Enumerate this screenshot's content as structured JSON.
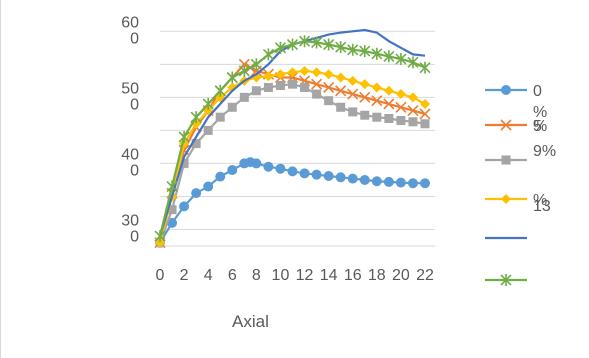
{
  "chart_data": {
    "type": "line",
    "x": [
      0,
      1,
      2,
      3,
      4,
      5,
      6,
      7,
      8,
      9,
      10,
      11,
      12,
      13,
      14,
      15,
      16,
      17,
      18,
      19,
      20,
      21,
      22
    ],
    "xticks": [
      "0",
      "2",
      "4",
      "6",
      "8",
      "10",
      "12",
      "14",
      "16",
      "18",
      "20",
      "22"
    ],
    "ytick_labels": [
      {
        "value": 60,
        "lines": [
          "60",
          "0"
        ]
      },
      {
        "value": 50,
        "lines": [
          "50",
          "0"
        ]
      },
      {
        "value": 40,
        "lines": [
          "40",
          "0"
        ]
      },
      {
        "value": 30,
        "lines": [
          "30",
          "0"
        ]
      }
    ],
    "ylim": [
      27.5,
      60.5
    ],
    "xlabel": "Axial",
    "ylabel": "",
    "legend_position": "right",
    "series": [
      {
        "name": "0 %",
        "legend_lines": [
          "0",
          "%"
        ],
        "color": "#5b9bd5",
        "marker": "circle",
        "points": [
          [
            0,
            28
          ],
          [
            1,
            31
          ],
          [
            2,
            33.5
          ],
          [
            3,
            35.5
          ],
          [
            4,
            36.5
          ],
          [
            5,
            38
          ],
          [
            6,
            39
          ],
          [
            7,
            40
          ],
          [
            7.5,
            40.2
          ],
          [
            8,
            40
          ],
          [
            9,
            39.5
          ],
          [
            10,
            39.2
          ],
          [
            11,
            38.8
          ],
          [
            12,
            38.5
          ],
          [
            13,
            38.3
          ],
          [
            14,
            38.1
          ],
          [
            15,
            37.9
          ],
          [
            16,
            37.7
          ],
          [
            17,
            37.5
          ],
          [
            18,
            37.3
          ],
          [
            19,
            37.2
          ],
          [
            20,
            37.1
          ],
          [
            21,
            37.0
          ],
          [
            22,
            37.0
          ]
        ]
      },
      {
        "name": "5 %",
        "legend_lines": [
          "5",
          "%"
        ],
        "color": "#ed7d31",
        "marker": "x",
        "points": [
          [
            0,
            28
          ],
          [
            1,
            35.5
          ],
          [
            2,
            42
          ],
          [
            3,
            45.5
          ],
          [
            4,
            48
          ],
          [
            5,
            51
          ],
          [
            6,
            53
          ],
          [
            7,
            55
          ],
          [
            7.5,
            54.5
          ],
          [
            8,
            54
          ],
          [
            9,
            53.5
          ],
          [
            10,
            53
          ],
          [
            11,
            53
          ],
          [
            12,
            52.5
          ],
          [
            13,
            52
          ],
          [
            14,
            51.5
          ],
          [
            15,
            51
          ],
          [
            16,
            50.5
          ],
          [
            17,
            50
          ],
          [
            18,
            49.5
          ],
          [
            19,
            49
          ],
          [
            20,
            48.5
          ],
          [
            21,
            48
          ],
          [
            22,
            47.5
          ]
        ]
      },
      {
        "name": "9%",
        "legend_lines": [
          "9%"
        ],
        "color": "#a5a5a5",
        "marker": "square",
        "points": [
          [
            0,
            28
          ],
          [
            1,
            33
          ],
          [
            2,
            40
          ],
          [
            3,
            43
          ],
          [
            4,
            45
          ],
          [
            5,
            47
          ],
          [
            6,
            48.5
          ],
          [
            7,
            50
          ],
          [
            8,
            51
          ],
          [
            9,
            51.5
          ],
          [
            10,
            51.8
          ],
          [
            11,
            52
          ],
          [
            12,
            51.5
          ],
          [
            13,
            50.5
          ],
          [
            14,
            49.5
          ],
          [
            15,
            48.5
          ],
          [
            16,
            47.8
          ],
          [
            17,
            47.3
          ],
          [
            18,
            47
          ],
          [
            19,
            46.8
          ],
          [
            20,
            46.5
          ],
          [
            21,
            46.3
          ],
          [
            22,
            46
          ]
        ]
      },
      {
        "name": "13 %",
        "legend_lines": [
          "13",
          "%"
        ],
        "color": "#ffc000",
        "marker": "diamond",
        "points": [
          [
            0,
            28
          ],
          [
            1,
            35
          ],
          [
            2,
            43
          ],
          [
            3,
            46
          ],
          [
            4,
            48
          ],
          [
            5,
            50
          ],
          [
            6,
            51.5
          ],
          [
            7,
            52.5
          ],
          [
            8,
            53
          ],
          [
            9,
            53.2
          ],
          [
            10,
            53.5
          ],
          [
            11,
            53.8
          ],
          [
            12,
            54
          ],
          [
            13,
            53.8
          ],
          [
            14,
            53.5
          ],
          [
            15,
            53
          ],
          [
            16,
            52.5
          ],
          [
            17,
            52
          ],
          [
            18,
            51.5
          ],
          [
            19,
            51
          ],
          [
            20,
            50.5
          ],
          [
            21,
            50
          ],
          [
            22,
            49
          ]
        ]
      },
      {
        "name": "",
        "legend_lines": [],
        "color": "#4472c4",
        "marker": "none",
        "points": [
          [
            0,
            29
          ],
          [
            1,
            35
          ],
          [
            2,
            41
          ],
          [
            3,
            44
          ],
          [
            4,
            47
          ],
          [
            5,
            49
          ],
          [
            6,
            51
          ],
          [
            7,
            52.5
          ],
          [
            8,
            53.5
          ],
          [
            9,
            55
          ],
          [
            10,
            57
          ],
          [
            11,
            58
          ],
          [
            12,
            58.5
          ],
          [
            13,
            59
          ],
          [
            14,
            59.5
          ],
          [
            15,
            59.8
          ],
          [
            16,
            60
          ],
          [
            17,
            60.2
          ],
          [
            18,
            59.8
          ],
          [
            19,
            58.5
          ],
          [
            20,
            57.5
          ],
          [
            21,
            56.5
          ],
          [
            22,
            56.3
          ]
        ]
      },
      {
        "name": "",
        "legend_lines": [],
        "color": "#70ad47",
        "marker": "star",
        "points": [
          [
            0,
            29
          ],
          [
            1,
            36.5
          ],
          [
            2,
            44
          ],
          [
            3,
            47
          ],
          [
            4,
            49
          ],
          [
            5,
            51
          ],
          [
            6,
            53
          ],
          [
            7,
            54
          ],
          [
            8,
            55
          ],
          [
            9,
            56.5
          ],
          [
            10,
            57.5
          ],
          [
            11,
            58
          ],
          [
            12,
            58.5
          ],
          [
            13,
            58.3
          ],
          [
            14,
            58
          ],
          [
            15,
            57.6
          ],
          [
            16,
            57.2
          ],
          [
            17,
            57
          ],
          [
            18,
            56.6
          ],
          [
            19,
            56.2
          ],
          [
            20,
            55.8
          ],
          [
            21,
            55.3
          ],
          [
            22,
            54.5
          ]
        ]
      }
    ]
  }
}
